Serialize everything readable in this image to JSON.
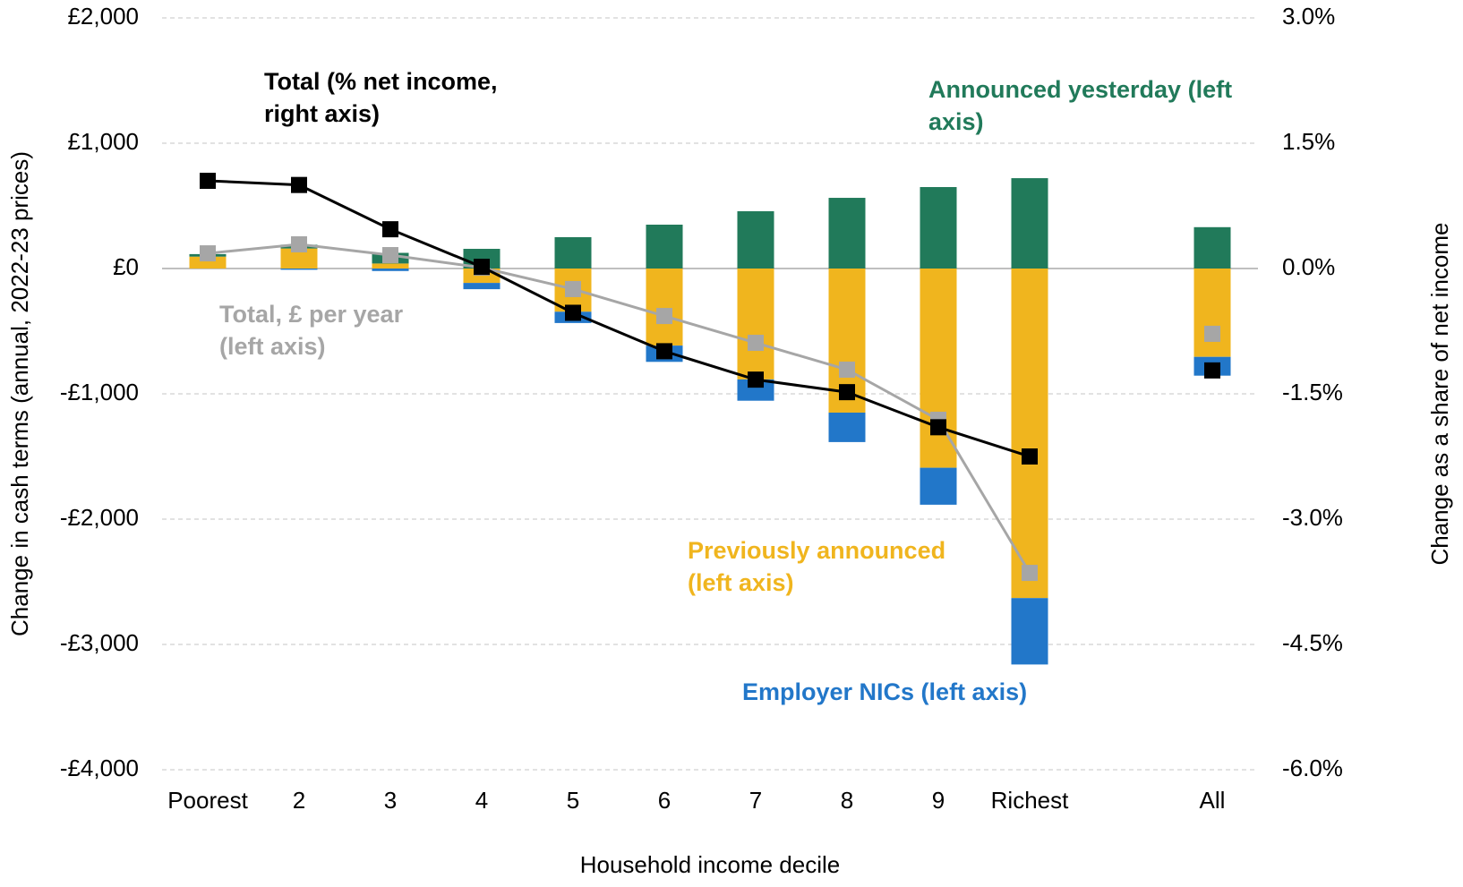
{
  "chart_data": {
    "type": "bar",
    "x_label": "Household income decile",
    "y_label": "Change in cash terms (annual, 2022-23 prices)",
    "y2_label": "Change as a share of net income",
    "categories": [
      "Poorest",
      "2",
      "3",
      "4",
      "5",
      "6",
      "7",
      "8",
      "9",
      "Richest",
      null,
      "All"
    ],
    "series": [
      {
        "name": "Previously announced (left axis)",
        "type": "bar",
        "color": "#f0b51e",
        "values": [
          95,
          160,
          40,
          -115,
          -345,
          -615,
          -885,
          -1150,
          -1590,
          -2630,
          null,
          -705
        ]
      },
      {
        "name": "Announced yesterday (left axis)",
        "type": "bar",
        "color": "#217a5a",
        "values": [
          20,
          30,
          85,
          157,
          250,
          350,
          457,
          564,
          650,
          721,
          null,
          330
        ]
      },
      {
        "name": "Employer NICs (left axis)",
        "type": "bar",
        "color": "#2277c9",
        "values": [
          0,
          -10,
          -20,
          -50,
          -90,
          -130,
          -170,
          -235,
          -295,
          -530,
          null,
          -150
        ]
      },
      {
        "name": "Total, £ per year (left axis)",
        "type": "line",
        "color": "#a6a6a6",
        "values": [
          121,
          193,
          107,
          7,
          -164,
          -379,
          -593,
          -807,
          -1207,
          -2429,
          null,
          -521
        ]
      },
      {
        "name": "Total (% net income, right axis)",
        "type": "line",
        "axis": "y2",
        "color": "#000000",
        "values": [
          1.05,
          1.0,
          0.47,
          0.02,
          -0.53,
          -0.99,
          -1.33,
          -1.48,
          -1.9,
          -2.25,
          null,
          -1.22
        ]
      }
    ],
    "ylim": [
      -4000,
      2000
    ],
    "yticks": [
      {
        "value": -4000,
        "label": "-£4,000"
      },
      {
        "value": -3000,
        "label": "-£3,000"
      },
      {
        "value": -2000,
        "label": "-£2,000"
      },
      {
        "value": -1000,
        "label": "-£1,000"
      },
      {
        "value": 0,
        "label": "£0"
      },
      {
        "value": 1000,
        "label": "£1,000"
      },
      {
        "value": 2000,
        "label": "£2,000"
      }
    ],
    "y2lim": [
      -6,
      3
    ],
    "y2ticks": [
      {
        "value": -6,
        "label": "-6.0%"
      },
      {
        "value": -4.5,
        "label": "-4.5%"
      },
      {
        "value": -3,
        "label": "-3.0%"
      },
      {
        "value": -1.5,
        "label": "-1.5%"
      },
      {
        "value": 0,
        "label": "0.0%"
      },
      {
        "value": 1.5,
        "label": "1.5%"
      },
      {
        "value": 3,
        "label": "3.0%"
      }
    ],
    "grid": true
  }
}
